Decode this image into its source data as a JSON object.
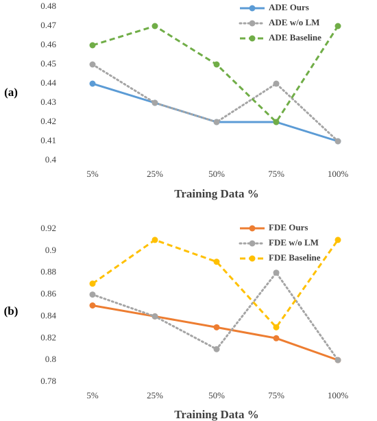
{
  "chart_data": [
    {
      "type": "line",
      "panel_label": "(a)",
      "categories": [
        "5%",
        "25%",
        "50%",
        "75%",
        "100%"
      ],
      "xlabel": "Training Data %",
      "ylabel": "",
      "ylim": [
        0.4,
        0.48
      ],
      "yticks": [
        "0.4",
        "0.41",
        "0.42",
        "0.43",
        "0.44",
        "0.45",
        "0.46",
        "0.47",
        "0.48"
      ],
      "legend_position": "top-right",
      "grid": false,
      "series": [
        {
          "name": "ADE Ours",
          "values": [
            0.44,
            0.43,
            0.42,
            0.42,
            0.41
          ],
          "color": "#5B9BD5",
          "dash": "solid"
        },
        {
          "name": "ADE w/o LM",
          "values": [
            0.45,
            0.43,
            0.42,
            0.44,
            0.41
          ],
          "color": "#A5A5A5",
          "dash": "dotted"
        },
        {
          "name": "ADE Baseline",
          "values": [
            0.46,
            0.47,
            0.45,
            0.42,
            0.47
          ],
          "color": "#70AD47",
          "dash": "dashed"
        }
      ]
    },
    {
      "type": "line",
      "panel_label": "(b)",
      "categories": [
        "5%",
        "25%",
        "50%",
        "75%",
        "100%"
      ],
      "xlabel": "Training Data %",
      "ylabel": "",
      "ylim": [
        0.78,
        0.92
      ],
      "yticks": [
        "0.78",
        "0.8",
        "0.82",
        "0.84",
        "0.86",
        "0.88",
        "0.9",
        "0.92"
      ],
      "legend_position": "top-right",
      "grid": false,
      "series": [
        {
          "name": "FDE Ours",
          "values": [
            0.85,
            0.84,
            0.83,
            0.82,
            0.8
          ],
          "color": "#ED7D31",
          "dash": "solid"
        },
        {
          "name": "FDE w/o LM",
          "values": [
            0.86,
            0.84,
            0.81,
            0.88,
            0.8
          ],
          "color": "#A5A5A5",
          "dash": "dotted"
        },
        {
          "name": "FDE Baseline",
          "values": [
            0.87,
            0.91,
            0.89,
            0.83,
            0.91
          ],
          "color": "#FFC000",
          "dash": "dashed"
        }
      ]
    }
  ]
}
